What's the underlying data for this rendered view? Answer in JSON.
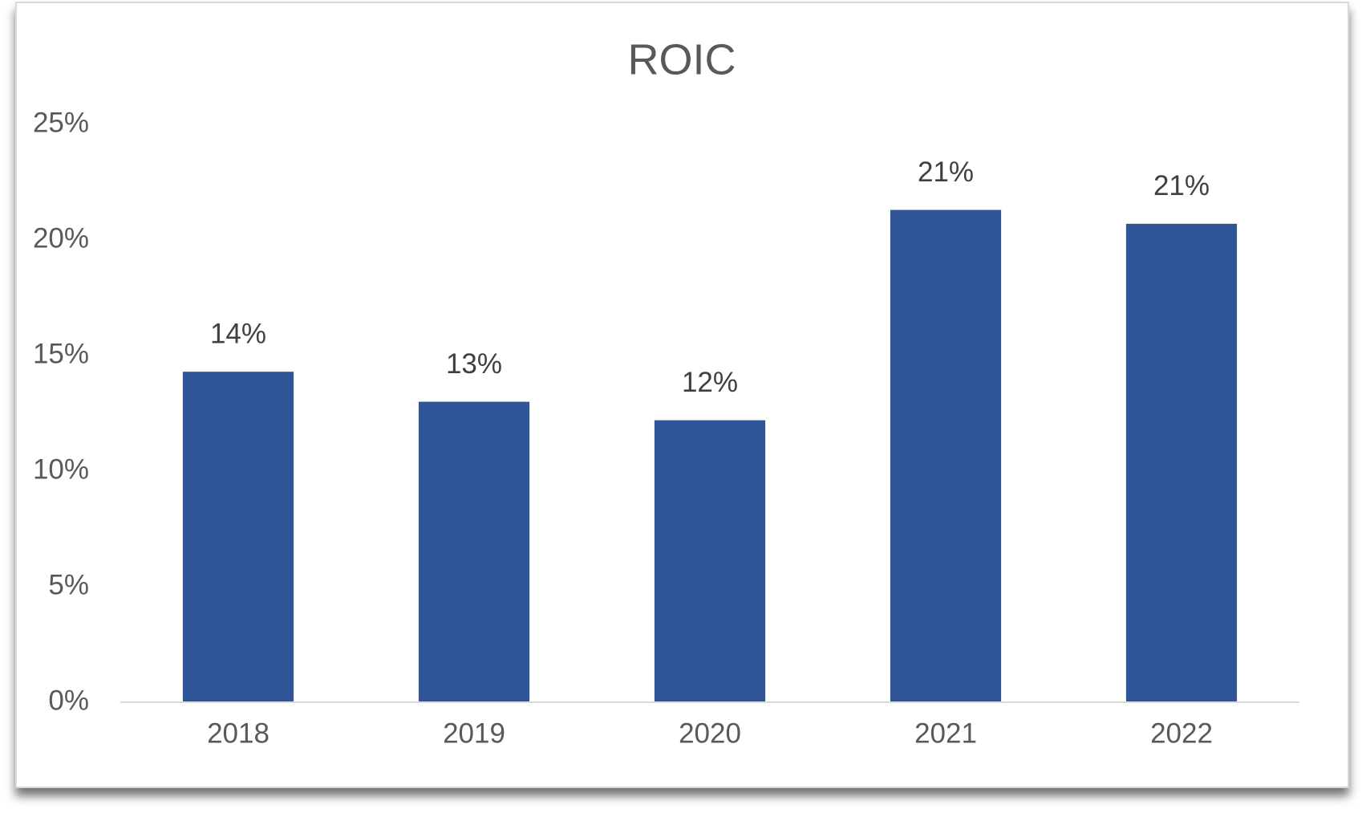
{
  "chart_data": {
    "type": "bar",
    "title": "ROIC",
    "categories": [
      "2018",
      "2019",
      "2020",
      "2021",
      "2022"
    ],
    "values": [
      14.3,
      13.0,
      12.2,
      21.3,
      20.7
    ],
    "value_labels": [
      "14%",
      "13%",
      "12%",
      "21%",
      "21%"
    ],
    "color": "#2f5597",
    "ylim": [
      0,
      25
    ],
    "yticks": [
      {
        "value": 0,
        "label": "0%"
      },
      {
        "value": 5,
        "label": "5%"
      },
      {
        "value": 10,
        "label": "10%"
      },
      {
        "value": 15,
        "label": "15%"
      },
      {
        "value": 20,
        "label": "20%"
      },
      {
        "value": 25,
        "label": "25%"
      }
    ],
    "grid": false
  }
}
